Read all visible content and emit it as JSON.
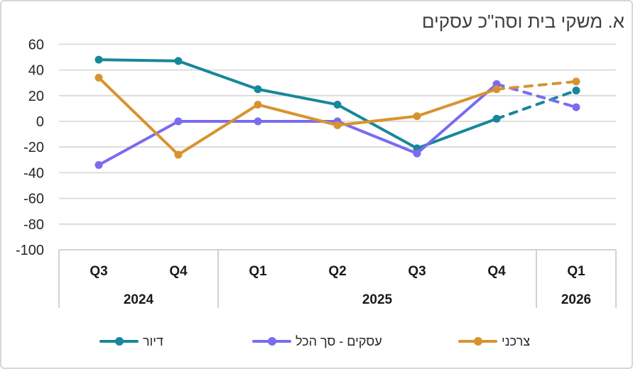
{
  "title": "א. משקי בית וסה\"כ עסקים",
  "colors": {
    "housing": "#17879B",
    "business": "#7A6BF0",
    "consumer": "#D8932F",
    "gridline": "#DADADA",
    "table_border": "#C6C6C6",
    "tick_text": "#262626",
    "title_text": "#3F3F3F"
  },
  "chart_data": {
    "type": "line",
    "title": "א. משקי בית וסה\"כ עסקים",
    "x_quarters": [
      "Q3",
      "Q4",
      "Q1",
      "Q2",
      "Q3",
      "Q4",
      "Q1"
    ],
    "x_years": [
      {
        "label": "2024",
        "span": 2
      },
      {
        "label": "2025",
        "span": 4
      },
      {
        "label": "2026",
        "span": 1
      }
    ],
    "ylim": [
      -100,
      60
    ],
    "yticks": [
      60,
      40,
      20,
      0,
      -20,
      -40,
      -60,
      -80,
      -100
    ],
    "grid": "horizontal",
    "forecast_from_index": 5,
    "forecast_style": "dashed",
    "legend_position": "bottom",
    "series": [
      {
        "name": "דיור",
        "key": "housing",
        "color": "#17879B",
        "values": [
          48,
          47,
          25,
          13,
          -21,
          2,
          24
        ]
      },
      {
        "name": "עסקים - סך הכל",
        "key": "business",
        "color": "#7A6BF0",
        "values": [
          -34,
          0,
          0,
          0,
          -25,
          29,
          11
        ]
      },
      {
        "name": "צרכני",
        "key": "consumer",
        "color": "#D8932F",
        "values": [
          34,
          -26,
          13,
          -3,
          4,
          25,
          31
        ]
      }
    ]
  }
}
